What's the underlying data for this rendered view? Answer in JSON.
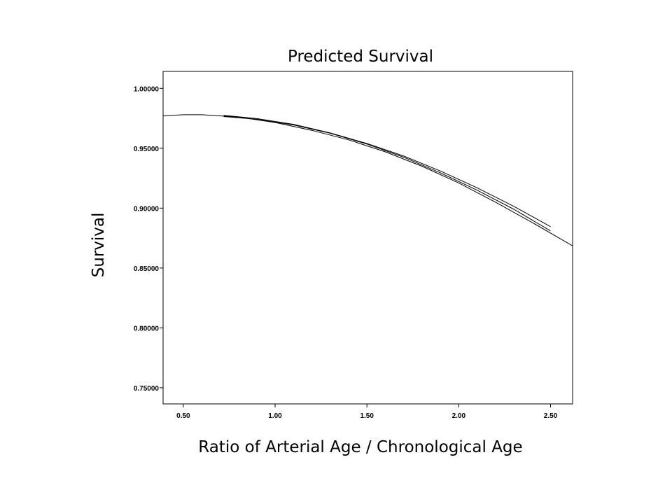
{
  "chart_data": {
    "type": "line",
    "title": "Predicted Survival",
    "xlabel": "Ratio of Arterial Age / Chronological Age",
    "ylabel": "Survival",
    "xlim": [
      0.39,
      2.62
    ],
    "ylim": [
      0.7365,
      1.0142
    ],
    "xticks": [
      "0.50",
      "1.00",
      "1.50",
      "2.00",
      "2.50"
    ],
    "yticks": [
      "0.75000",
      "0.80000",
      "0.85000",
      "0.90000",
      "0.95000",
      "1.00000"
    ],
    "grid": false,
    "series": [
      {
        "x": [
          0.39,
          0.5,
          0.6,
          0.8,
          1.0,
          1.2,
          1.4,
          1.6,
          1.8,
          2.0,
          2.2,
          2.4,
          2.62
        ],
        "values": [
          0.977,
          0.978,
          0.978,
          0.976,
          0.9715,
          0.965,
          0.957,
          0.947,
          0.935,
          0.921,
          0.905,
          0.888,
          0.8685
        ]
      },
      {
        "x": [
          0.72,
          0.9,
          1.1,
          1.3,
          1.5,
          1.7,
          1.9,
          2.1,
          2.3,
          2.5
        ],
        "values": [
          0.9765,
          0.9742,
          0.9695,
          0.9625,
          0.9535,
          0.9425,
          0.9295,
          0.915,
          0.899,
          0.881
        ]
      },
      {
        "x": [
          0.72,
          0.9,
          1.1,
          1.3,
          1.5,
          1.7,
          1.9,
          2.1,
          2.3,
          2.5
        ],
        "values": [
          0.9775,
          0.9748,
          0.97,
          0.9628,
          0.954,
          0.9435,
          0.931,
          0.917,
          0.9015,
          0.8845
        ]
      }
    ]
  }
}
